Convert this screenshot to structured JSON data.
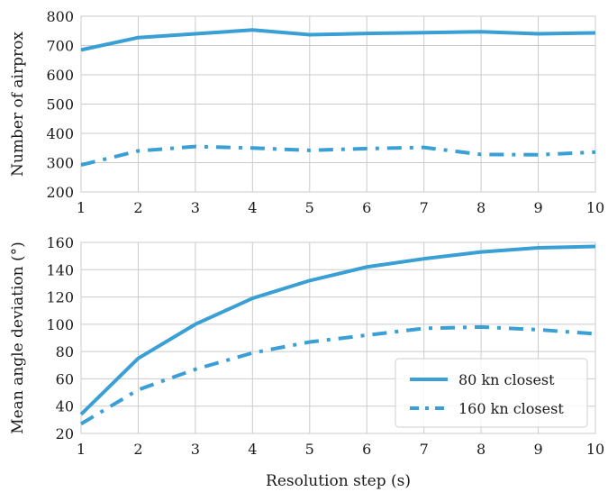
{
  "colors": {
    "series": "#3a9fd5",
    "grid": "#cbcbcb",
    "text": "#1a1a1a"
  },
  "legend": {
    "placement": "lower-right",
    "entries": [
      {
        "label": "80 kn closest",
        "style": "solid"
      },
      {
        "label": "160 kn closest",
        "style": "dash-dot"
      }
    ]
  },
  "chart_data": [
    {
      "type": "line",
      "title": "",
      "xlabel": "",
      "ylabel": "Number of airprox",
      "x": [
        1,
        2,
        3,
        4,
        5,
        6,
        7,
        8,
        9,
        10
      ],
      "xlim": [
        1,
        10
      ],
      "ylim": [
        200,
        800
      ],
      "xticks": [
        "1",
        "2",
        "3",
        "4",
        "5",
        "6",
        "7",
        "8",
        "9",
        "10"
      ],
      "yticks": [
        "200",
        "300",
        "400",
        "500",
        "600",
        "700",
        "800"
      ],
      "grid": true,
      "series": [
        {
          "name": "80 kn closest",
          "style": "solid",
          "values": [
            685,
            727,
            740,
            753,
            737,
            741,
            744,
            747,
            740,
            743
          ]
        },
        {
          "name": "160 kn closest",
          "style": "dash-dot",
          "values": [
            292,
            340,
            355,
            350,
            342,
            348,
            352,
            328,
            327,
            336
          ]
        }
      ]
    },
    {
      "type": "line",
      "title": "",
      "xlabel": "Resolution step (s)",
      "ylabel": "Mean angle deviation (°)",
      "x": [
        1,
        2,
        3,
        4,
        5,
        6,
        7,
        8,
        9,
        10
      ],
      "xlim": [
        1,
        10
      ],
      "ylim": [
        20,
        160
      ],
      "xticks": [
        "1",
        "2",
        "3",
        "4",
        "5",
        "6",
        "7",
        "8",
        "9",
        "10"
      ],
      "yticks": [
        "20",
        "40",
        "60",
        "80",
        "100",
        "120",
        "140",
        "160"
      ],
      "grid": true,
      "series": [
        {
          "name": "80 kn closest",
          "style": "solid",
          "values": [
            34,
            75,
            100,
            119,
            132,
            142,
            148,
            153,
            156,
            157
          ]
        },
        {
          "name": "160 kn closest",
          "style": "dash-dot",
          "values": [
            27,
            52,
            67,
            79,
            87,
            92,
            97,
            98,
            96,
            93
          ]
        }
      ]
    }
  ]
}
